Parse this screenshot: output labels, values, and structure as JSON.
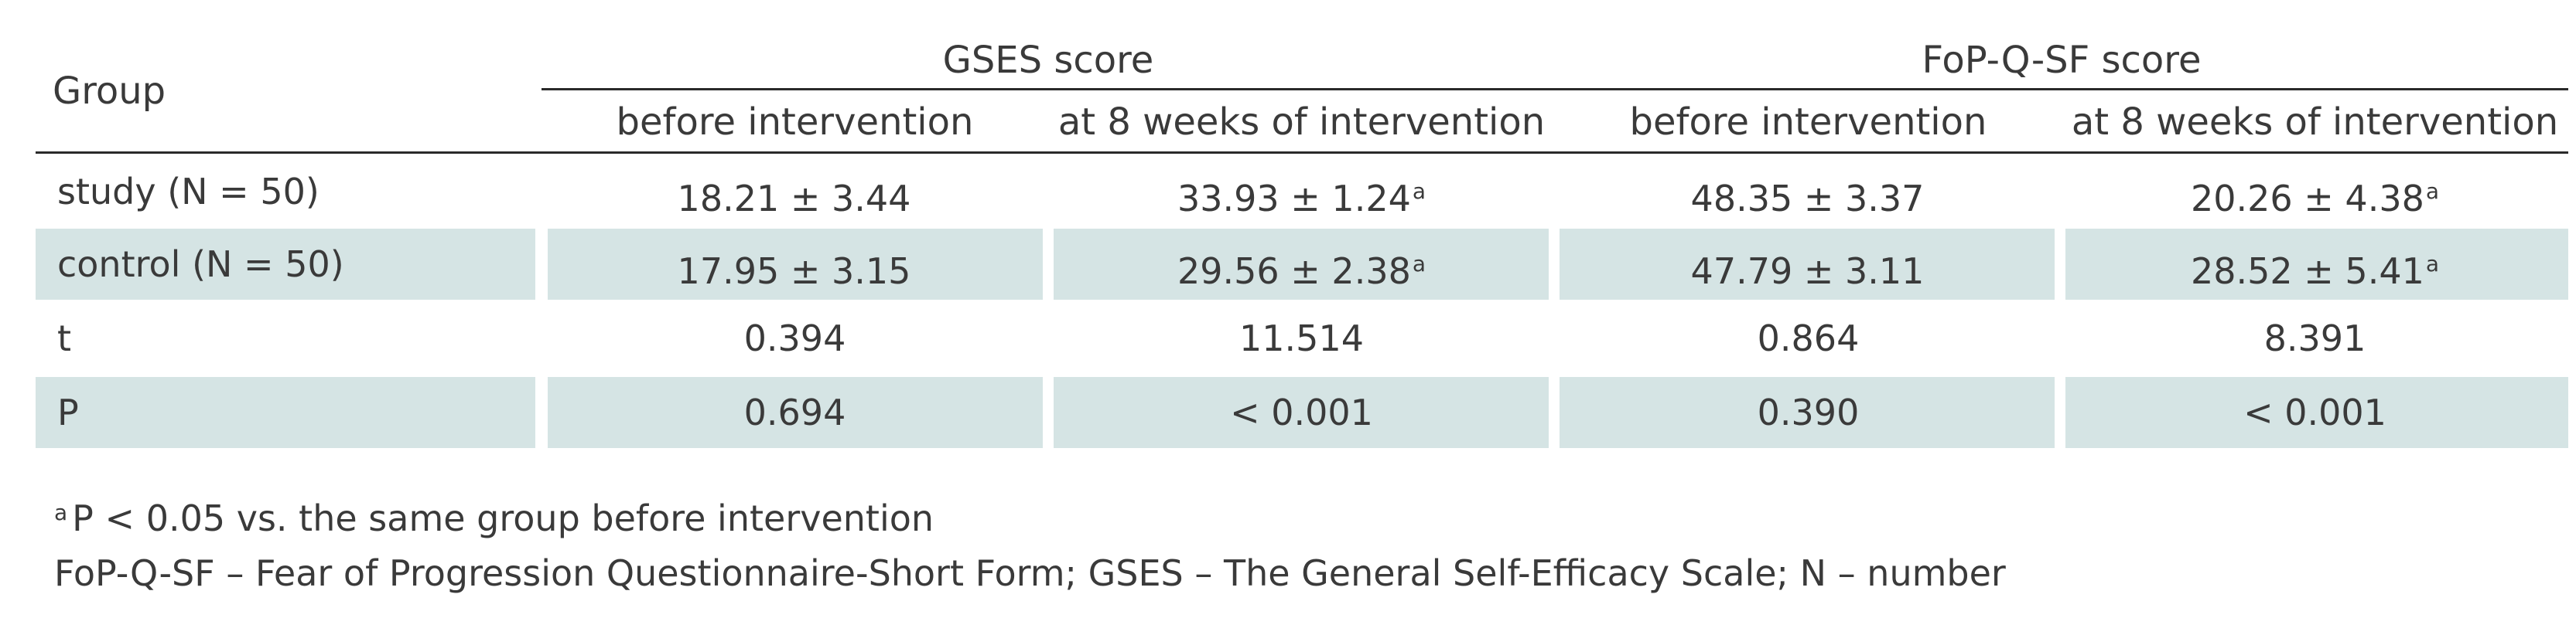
{
  "table": {
    "group_header": "Group",
    "gses_header": "GSES score",
    "fop_header": "FoP-Q-SF score",
    "subheaders": [
      "before intervention",
      "at 8 weeks of intervention",
      "before intervention",
      "at 8 weeks of intervention"
    ],
    "rows": [
      {
        "label": "study (N = 50)",
        "cells": [
          {
            "value": "18.21 ± 3.44",
            "sup": ""
          },
          {
            "value": "33.93 ± 1.24",
            "sup": "a"
          },
          {
            "value": "48.35 ± 3.37",
            "sup": ""
          },
          {
            "value": "20.26 ± 4.38",
            "sup": "a"
          }
        ]
      },
      {
        "label": "control (N = 50)",
        "cells": [
          {
            "value": "17.95 ± 3.15",
            "sup": ""
          },
          {
            "value": "29.56 ± 2.38",
            "sup": "a"
          },
          {
            "value": "47.79 ± 3.11",
            "sup": ""
          },
          {
            "value": "28.52 ± 5.41",
            "sup": "a"
          }
        ]
      },
      {
        "label": "t",
        "cells": [
          {
            "value": "0.394",
            "sup": ""
          },
          {
            "value": "11.514",
            "sup": ""
          },
          {
            "value": "0.864",
            "sup": ""
          },
          {
            "value": "8.391",
            "sup": ""
          }
        ]
      },
      {
        "label": "P",
        "cells": [
          {
            "value": "0.694",
            "sup": ""
          },
          {
            "value": "< 0.001",
            "sup": ""
          },
          {
            "value": "0.390",
            "sup": ""
          },
          {
            "value": "< 0.001",
            "sup": ""
          }
        ]
      }
    ]
  },
  "footnotes": {
    "note_marker": "a",
    "note_text": "P < 0.05 vs. the same group before intervention",
    "abbreviations": "FoP-Q-SF – Fear of Progression Questionnaire-Short Form; GSES – The General Self-Efficacy Scale; N – number"
  },
  "colors": {
    "shaded_row": "#d5e4e4",
    "rule": "#2a2a2a",
    "text": "#3a3a3a"
  }
}
